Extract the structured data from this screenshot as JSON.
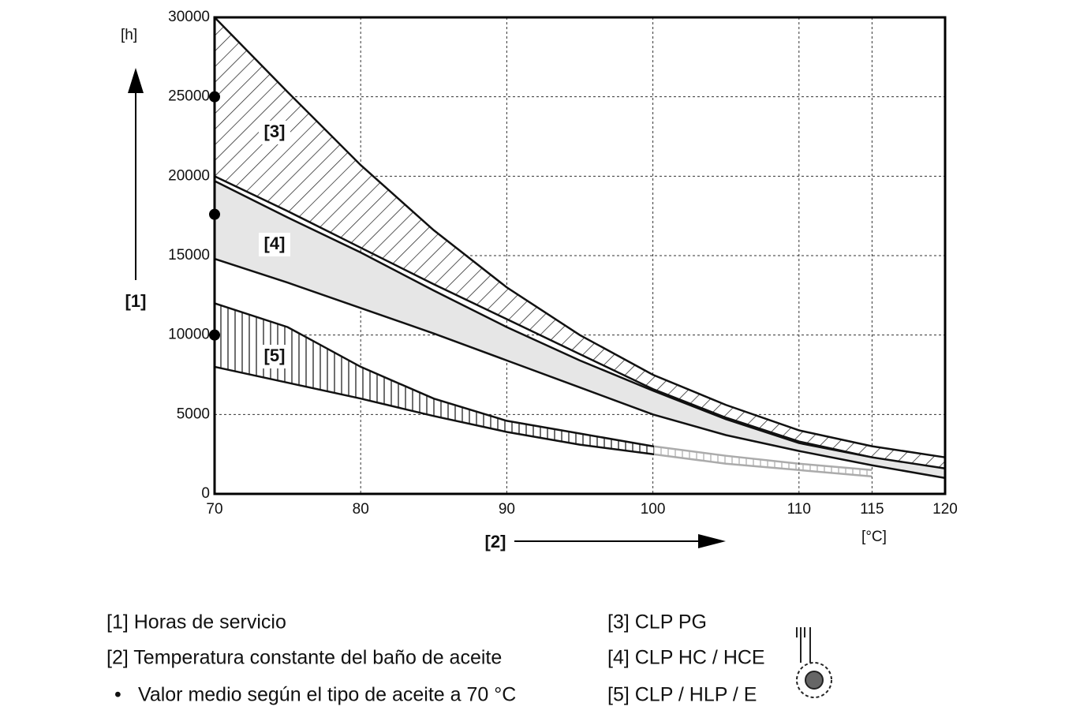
{
  "chart_data": {
    "type": "band",
    "y_unit": "[h]",
    "y_key": "[1]",
    "x_unit": "[°C]",
    "x_key": "[2]",
    "xlim": [
      70,
      120
    ],
    "ylim": [
      0,
      30000
    ],
    "xticks": [
      70,
      80,
      90,
      100,
      110,
      115,
      120
    ],
    "yticks": [
      0,
      5000,
      10000,
      15000,
      20000,
      25000,
      30000
    ],
    "grid": true,
    "bands": [
      {
        "name": "[3]",
        "pattern": "diagonal",
        "x": [
          70,
          75,
          80,
          85,
          90,
          95,
          100,
          105,
          110,
          115,
          120
        ],
        "upper": [
          30000,
          25300,
          20700,
          16600,
          13000,
          10000,
          7500,
          5600,
          4000,
          3000,
          2300
        ],
        "lower": [
          20000,
          17800,
          15500,
          13200,
          11000,
          8800,
          6600,
          4800,
          3300,
          2300,
          1500
        ]
      },
      {
        "name": "[4]",
        "pattern": "gray",
        "x": [
          70,
          75,
          80,
          85,
          90,
          95,
          100,
          105,
          110,
          115,
          120
        ],
        "upper": [
          19700,
          17400,
          15200,
          12800,
          10500,
          8400,
          6500,
          4700,
          3200,
          2300,
          1600
        ],
        "lower": [
          14800,
          13300,
          11700,
          10100,
          8400,
          6700,
          5000,
          3700,
          2700,
          1800,
          1000
        ]
      },
      {
        "name": "[5]",
        "pattern": "vertical",
        "x": [
          70,
          75,
          80,
          85,
          90,
          95,
          100,
          105,
          110,
          115
        ],
        "upper": [
          12000,
          10500,
          8000,
          6000,
          4600,
          3800,
          3000,
          2400,
          1900,
          1500
        ],
        "lower": [
          8000,
          7000,
          6000,
          4900,
          3900,
          3100,
          2500,
          1900,
          1500,
          1100
        ]
      }
    ],
    "mean_at_70": [
      25000,
      17600,
      10000
    ],
    "legend": [
      "[1] Horas de servicio",
      "[2] Temperatura constante del baño de aceite",
      "Valor medio según el tipo de aceite a 70 °C",
      "[3] CLP PG",
      "[4] CLP HC / HCE",
      "[5] CLP / HLP / E"
    ]
  }
}
